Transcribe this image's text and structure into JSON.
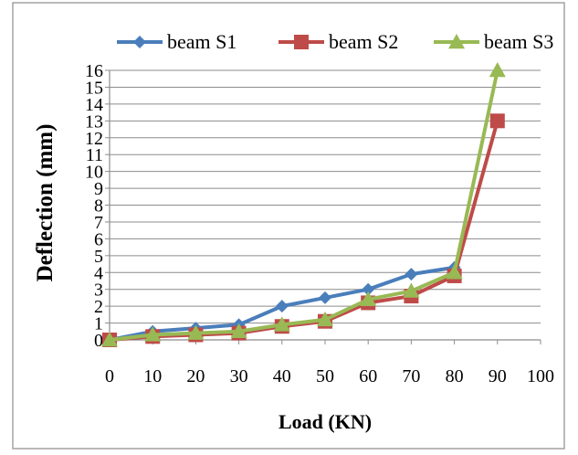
{
  "chart_data": {
    "type": "line",
    "xlabel": "Load (KN)",
    "ylabel": "Deflection (mm)",
    "xlim": [
      0,
      100
    ],
    "ylim": [
      0,
      16
    ],
    "x_ticks": [
      "0",
      "10",
      "20",
      "30",
      "40",
      "50",
      "60",
      "70",
      "80",
      "90",
      "100"
    ],
    "y_ticks": [
      "0",
      "1",
      "2",
      "3",
      "4",
      "5",
      "6",
      "7",
      "8",
      "9",
      "10",
      "11",
      "12",
      "13",
      "14",
      "15",
      "16"
    ],
    "grid": true,
    "legend_position": "top",
    "series": [
      {
        "name": "beam S1",
        "color": "#4a7ebb",
        "marker": "diamond",
        "x": [
          0,
          10,
          20,
          30,
          40,
          50,
          60,
          70,
          80
        ],
        "y": [
          0,
          0.5,
          0.7,
          0.9,
          2.0,
          2.5,
          3.0,
          3.9,
          4.3
        ]
      },
      {
        "name": "beam S2",
        "color": "#be4b48",
        "marker": "square",
        "x": [
          0,
          10,
          20,
          30,
          40,
          50,
          60,
          70,
          80,
          90
        ],
        "y": [
          0,
          0.2,
          0.3,
          0.4,
          0.8,
          1.1,
          2.2,
          2.6,
          3.8,
          13.0
        ]
      },
      {
        "name": "beam S3",
        "color": "#98b954",
        "marker": "triangle",
        "x": [
          0,
          10,
          20,
          30,
          40,
          50,
          60,
          70,
          80,
          90
        ],
        "y": [
          0,
          0.3,
          0.4,
          0.5,
          0.9,
          1.2,
          2.4,
          2.9,
          4.0,
          16.0
        ]
      }
    ]
  }
}
